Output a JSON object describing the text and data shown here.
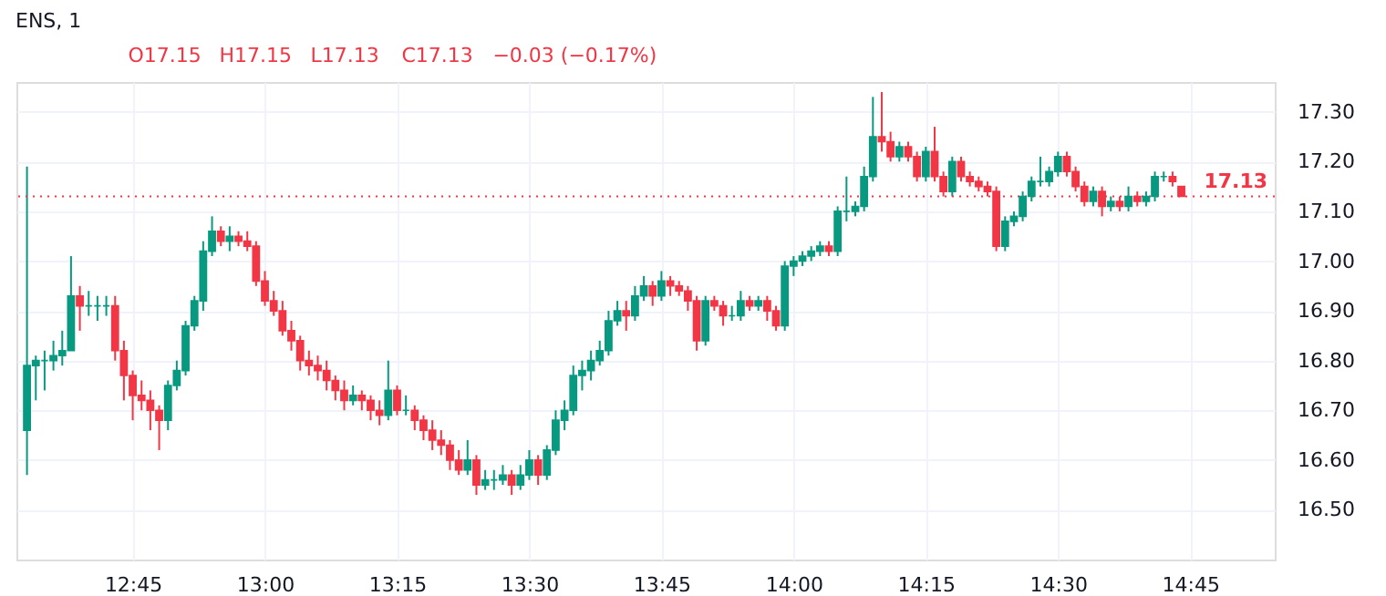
{
  "chart_data": {
    "type": "candlestick",
    "title": "ENS, 1",
    "annotations": [
      "O17.15",
      "H17.15",
      "L17.13",
      "C17.13",
      "−0.03 (−0.17%)"
    ],
    "x": [
      12.55,
      12.5667,
      12.5833,
      12.6,
      12.6167,
      12.6333,
      12.65,
      12.6667,
      12.6833,
      12.7,
      12.7167,
      12.7333,
      12.75,
      12.7667,
      12.7833,
      12.8,
      12.8167,
      12.8333,
      12.85,
      12.8667,
      12.8833,
      12.9,
      12.9167,
      12.9333,
      12.95,
      12.9667,
      12.9833,
      13.0,
      13.0167,
      13.0333,
      13.05,
      13.0667,
      13.0833,
      13.1,
      13.1167,
      13.1333,
      13.15,
      13.1667,
      13.1833,
      13.2,
      13.2167,
      13.2333,
      13.25,
      13.2667,
      13.2833,
      13.3,
      13.3167,
      13.3333,
      13.35,
      13.3667,
      13.3833,
      13.4,
      13.4167,
      13.4333,
      13.45,
      13.4667,
      13.4833,
      13.5,
      13.5167,
      13.5333,
      13.55,
      13.5667,
      13.5833,
      13.6,
      13.6167,
      13.6333,
      13.65,
      13.6667,
      13.6833,
      13.7,
      13.7167,
      13.7333,
      13.75,
      13.7667,
      13.7833,
      13.8,
      13.8167,
      13.8333,
      13.85,
      13.8667,
      13.8833,
      13.9,
      13.9167,
      13.9333,
      13.95,
      13.9667,
      13.9833,
      14.0,
      14.0167,
      14.0333,
      14.05,
      14.0667,
      14.0833,
      14.1,
      14.1167,
      14.1333,
      14.15,
      14.1667,
      14.1833,
      14.2,
      14.2167,
      14.2333,
      14.25,
      14.2667,
      14.2833,
      14.3,
      14.3167,
      14.3333,
      14.35,
      14.3667,
      14.3833,
      14.4,
      14.4167,
      14.4333,
      14.45,
      14.4667,
      14.4833,
      14.5,
      14.5167,
      14.5333,
      14.55,
      14.5667,
      14.5833,
      14.6,
      14.6167,
      14.6333,
      14.65,
      14.6667,
      14.6833,
      14.7,
      14.7167,
      14.7333
    ],
    "ohlc": [
      [
        16.66,
        17.19,
        16.57,
        16.79
      ],
      [
        16.79,
        16.81,
        16.72,
        16.8
      ],
      [
        16.8,
        16.82,
        16.74,
        16.8
      ],
      [
        16.8,
        16.84,
        16.78,
        16.81
      ],
      [
        16.81,
        16.86,
        16.79,
        16.82
      ],
      [
        16.82,
        17.01,
        16.82,
        16.93
      ],
      [
        16.93,
        16.95,
        16.86,
        16.91
      ],
      [
        16.91,
        16.94,
        16.89,
        16.91
      ],
      [
        16.91,
        16.93,
        16.88,
        16.91
      ],
      [
        16.91,
        16.93,
        16.89,
        16.91
      ],
      [
        16.91,
        16.93,
        16.8,
        16.82
      ],
      [
        16.82,
        16.84,
        16.72,
        16.77
      ],
      [
        16.77,
        16.78,
        16.68,
        16.73
      ],
      [
        16.73,
        16.76,
        16.7,
        16.72
      ],
      [
        16.72,
        16.74,
        16.66,
        16.7
      ],
      [
        16.7,
        16.71,
        16.62,
        16.68
      ],
      [
        16.68,
        16.76,
        16.66,
        16.75
      ],
      [
        16.75,
        16.8,
        16.74,
        16.78
      ],
      [
        16.78,
        16.88,
        16.77,
        16.87
      ],
      [
        16.87,
        16.93,
        16.86,
        16.92
      ],
      [
        16.92,
        17.04,
        16.9,
        17.02
      ],
      [
        17.02,
        17.09,
        17.01,
        17.06
      ],
      [
        17.06,
        17.07,
        17.03,
        17.04
      ],
      [
        17.04,
        17.07,
        17.02,
        17.05
      ],
      [
        17.05,
        17.06,
        17.03,
        17.04
      ],
      [
        17.04,
        17.06,
        17.02,
        17.03
      ],
      [
        17.03,
        17.04,
        16.95,
        16.96
      ],
      [
        16.96,
        16.98,
        16.91,
        16.92
      ],
      [
        16.92,
        16.94,
        16.89,
        16.9
      ],
      [
        16.9,
        16.92,
        16.85,
        16.86
      ],
      [
        16.86,
        16.88,
        16.82,
        16.84
      ],
      [
        16.84,
        16.85,
        16.78,
        16.8
      ],
      [
        16.8,
        16.82,
        16.77,
        16.79
      ],
      [
        16.79,
        16.81,
        16.76,
        16.78
      ],
      [
        16.78,
        16.8,
        16.74,
        16.76
      ],
      [
        16.76,
        16.77,
        16.72,
        16.74
      ],
      [
        16.74,
        16.76,
        16.7,
        16.72
      ],
      [
        16.72,
        16.75,
        16.71,
        16.73
      ],
      [
        16.73,
        16.74,
        16.7,
        16.72
      ],
      [
        16.72,
        16.73,
        16.68,
        16.7
      ],
      [
        16.7,
        16.72,
        16.67,
        16.69
      ],
      [
        16.69,
        16.8,
        16.68,
        16.74
      ],
      [
        16.74,
        16.75,
        16.69,
        16.7
      ],
      [
        16.7,
        16.73,
        16.69,
        16.7
      ],
      [
        16.7,
        16.71,
        16.66,
        16.68
      ],
      [
        16.68,
        16.69,
        16.64,
        16.66
      ],
      [
        16.66,
        16.68,
        16.62,
        16.64
      ],
      [
        16.64,
        16.66,
        16.61,
        16.63
      ],
      [
        16.63,
        16.64,
        16.58,
        16.6
      ],
      [
        16.6,
        16.62,
        16.57,
        16.58
      ],
      [
        16.58,
        16.64,
        16.57,
        16.6
      ],
      [
        16.6,
        16.61,
        16.53,
        16.55
      ],
      [
        16.55,
        16.58,
        16.54,
        16.56
      ],
      [
        16.56,
        16.58,
        16.54,
        16.56
      ],
      [
        16.56,
        16.59,
        16.55,
        16.57
      ],
      [
        16.57,
        16.58,
        16.53,
        16.55
      ],
      [
        16.55,
        16.59,
        16.54,
        16.57
      ],
      [
        16.57,
        16.62,
        16.56,
        16.6
      ],
      [
        16.6,
        16.61,
        16.55,
        16.57
      ],
      [
        16.57,
        16.63,
        16.56,
        16.62
      ],
      [
        16.62,
        16.7,
        16.61,
        16.68
      ],
      [
        16.68,
        16.72,
        16.66,
        16.7
      ],
      [
        16.7,
        16.79,
        16.69,
        16.77
      ],
      [
        16.77,
        16.8,
        16.74,
        16.78
      ],
      [
        16.78,
        16.82,
        16.76,
        16.8
      ],
      [
        16.8,
        16.84,
        16.79,
        16.82
      ],
      [
        16.82,
        16.9,
        16.81,
        16.88
      ],
      [
        16.88,
        16.92,
        16.87,
        16.9
      ],
      [
        16.9,
        16.92,
        16.86,
        16.89
      ],
      [
        16.89,
        16.95,
        16.88,
        16.93
      ],
      [
        16.93,
        16.97,
        16.92,
        16.95
      ],
      [
        16.95,
        16.96,
        16.91,
        16.93
      ],
      [
        16.93,
        16.98,
        16.92,
        16.96
      ],
      [
        16.96,
        16.97,
        16.93,
        16.95
      ],
      [
        16.95,
        16.96,
        16.93,
        16.94
      ],
      [
        16.94,
        16.95,
        16.9,
        16.92
      ],
      [
        16.92,
        16.93,
        16.82,
        16.84
      ],
      [
        16.84,
        16.93,
        16.83,
        16.92
      ],
      [
        16.92,
        16.93,
        16.9,
        16.91
      ],
      [
        16.91,
        16.92,
        16.87,
        16.89
      ],
      [
        16.89,
        16.91,
        16.88,
        16.89
      ],
      [
        16.89,
        16.94,
        16.88,
        16.92
      ],
      [
        16.92,
        16.93,
        16.9,
        16.91
      ],
      [
        16.91,
        16.93,
        16.9,
        16.92
      ],
      [
        16.92,
        16.93,
        16.88,
        16.9
      ],
      [
        16.9,
        16.91,
        16.86,
        16.87
      ],
      [
        16.87,
        17.0,
        16.86,
        16.99
      ],
      [
        16.99,
        17.01,
        16.97,
        17.0
      ],
      [
        17.0,
        17.02,
        16.99,
        17.01
      ],
      [
        17.01,
        17.03,
        17.0,
        17.02
      ],
      [
        17.02,
        17.04,
        17.01,
        17.03
      ],
      [
        17.03,
        17.04,
        17.01,
        17.02
      ],
      [
        17.02,
        17.11,
        17.01,
        17.1
      ],
      [
        17.1,
        17.17,
        17.08,
        17.1
      ],
      [
        17.1,
        17.12,
        17.09,
        17.11
      ],
      [
        17.11,
        17.19,
        17.1,
        17.17
      ],
      [
        17.17,
        17.33,
        17.16,
        17.25
      ],
      [
        17.25,
        17.34,
        17.22,
        17.24
      ],
      [
        17.24,
        17.26,
        17.2,
        17.21
      ],
      [
        17.21,
        17.24,
        17.2,
        17.23
      ],
      [
        17.23,
        17.24,
        17.2,
        17.21
      ],
      [
        17.21,
        17.22,
        17.16,
        17.17
      ],
      [
        17.17,
        17.23,
        17.16,
        17.22
      ],
      [
        17.22,
        17.27,
        17.16,
        17.17
      ],
      [
        17.17,
        17.18,
        17.13,
        17.14
      ],
      [
        17.14,
        17.21,
        17.13,
        17.2
      ],
      [
        17.2,
        17.21,
        17.16,
        17.17
      ],
      [
        17.17,
        17.18,
        17.15,
        17.16
      ],
      [
        17.16,
        17.17,
        17.14,
        17.15
      ],
      [
        17.15,
        17.16,
        17.13,
        17.14
      ],
      [
        17.14,
        17.15,
        17.02,
        17.03
      ],
      [
        17.03,
        17.09,
        17.02,
        17.08
      ],
      [
        17.08,
        17.1,
        17.07,
        17.09
      ],
      [
        17.09,
        17.14,
        17.08,
        17.13
      ],
      [
        17.13,
        17.17,
        17.12,
        17.16
      ],
      [
        17.16,
        17.21,
        17.15,
        17.16
      ],
      [
        17.16,
        17.19,
        17.15,
        17.18
      ],
      [
        17.18,
        17.22,
        17.17,
        17.21
      ],
      [
        17.21,
        17.22,
        17.17,
        17.18
      ],
      [
        17.18,
        17.19,
        17.14,
        17.15
      ],
      [
        17.15,
        17.16,
        17.11,
        17.12
      ],
      [
        17.12,
        17.15,
        17.11,
        17.14
      ],
      [
        17.14,
        17.15,
        17.09,
        17.11
      ],
      [
        17.11,
        17.13,
        17.1,
        17.12
      ],
      [
        17.12,
        17.13,
        17.1,
        17.11
      ],
      [
        17.11,
        17.15,
        17.1,
        17.13
      ],
      [
        17.13,
        17.14,
        17.11,
        17.12
      ],
      [
        17.12,
        17.14,
        17.11,
        17.13
      ],
      [
        17.13,
        17.18,
        17.12,
        17.17
      ],
      [
        17.17,
        17.18,
        17.16,
        17.17
      ],
      [
        17.17,
        17.18,
        17.15,
        17.16
      ],
      [
        17.15,
        17.15,
        17.13,
        17.13
      ]
    ],
    "xlim": [
      12.53,
      14.91
    ],
    "xticks": [
      {
        "value": 12.75,
        "label": "12:45"
      },
      {
        "value": 13.0,
        "label": "13:00"
      },
      {
        "value": 13.25,
        "label": "13:15"
      },
      {
        "value": 13.5,
        "label": "13:30"
      },
      {
        "value": 13.75,
        "label": "13:45"
      },
      {
        "value": 14.0,
        "label": "14:00"
      },
      {
        "value": 14.25,
        "label": "14:15"
      },
      {
        "value": 14.5,
        "label": "14:30"
      },
      {
        "value": 14.75,
        "label": "14:45"
      }
    ],
    "ylim": [
      16.4,
      17.36
    ],
    "yticks": [
      {
        "value": 16.5,
        "label": "16.50"
      },
      {
        "value": 16.6,
        "label": "16.60"
      },
      {
        "value": 16.7,
        "label": "16.70"
      },
      {
        "value": 16.8,
        "label": "16.80"
      },
      {
        "value": 16.9,
        "label": "16.90"
      },
      {
        "value": 17.0,
        "label": "17.00"
      },
      {
        "value": 17.1,
        "label": "17.10"
      },
      {
        "value": 17.2,
        "label": "17.20"
      },
      {
        "value": 17.3,
        "label": "17.30"
      }
    ],
    "ref_lines": [
      {
        "axis": "y",
        "value": 17.13,
        "label": "17.13",
        "color": "#f23645",
        "line_style": "dotted"
      }
    ],
    "grid": true,
    "legend": false
  }
}
